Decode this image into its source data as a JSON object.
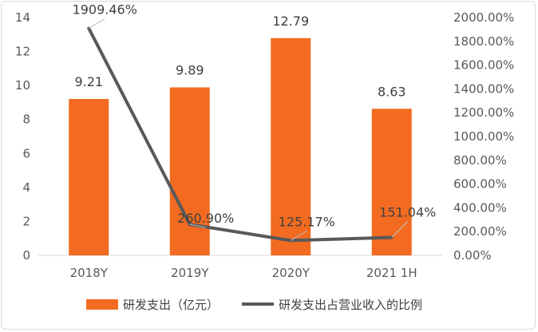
{
  "chart_data": {
    "type": "bar",
    "categories": [
      "2018Y",
      "2019Y",
      "2020Y",
      "2021 1H"
    ],
    "series": [
      {
        "name": "研发支出（亿元）",
        "type": "bar",
        "axis": "left",
        "values": [
          9.21,
          9.89,
          12.79,
          8.63
        ],
        "labels": [
          "9.21",
          "9.89",
          "12.79",
          "8.63"
        ],
        "color": "#f26b21"
      },
      {
        "name": "研发支出占营业收入的比例",
        "type": "line",
        "axis": "right",
        "values": [
          1909.46,
          260.9,
          125.17,
          151.04
        ],
        "labels": [
          "1909.46%",
          "260.90%",
          "125.17%",
          "151.04%"
        ],
        "color": "#595959"
      }
    ],
    "left_axis": {
      "ylim": [
        0,
        14
      ],
      "ticks": [
        "0",
        "2",
        "4",
        "6",
        "8",
        "10",
        "12",
        "14"
      ]
    },
    "right_axis": {
      "ylim": [
        0,
        2000
      ],
      "ticks": [
        "0.00%",
        "200.00%",
        "400.00%",
        "600.00%",
        "800.00%",
        "1000.00%",
        "1200.00%",
        "1400.00%",
        "1600.00%",
        "1800.00%",
        "2000.00%"
      ]
    },
    "title": "",
    "grid": false,
    "legend_position": "bottom"
  }
}
